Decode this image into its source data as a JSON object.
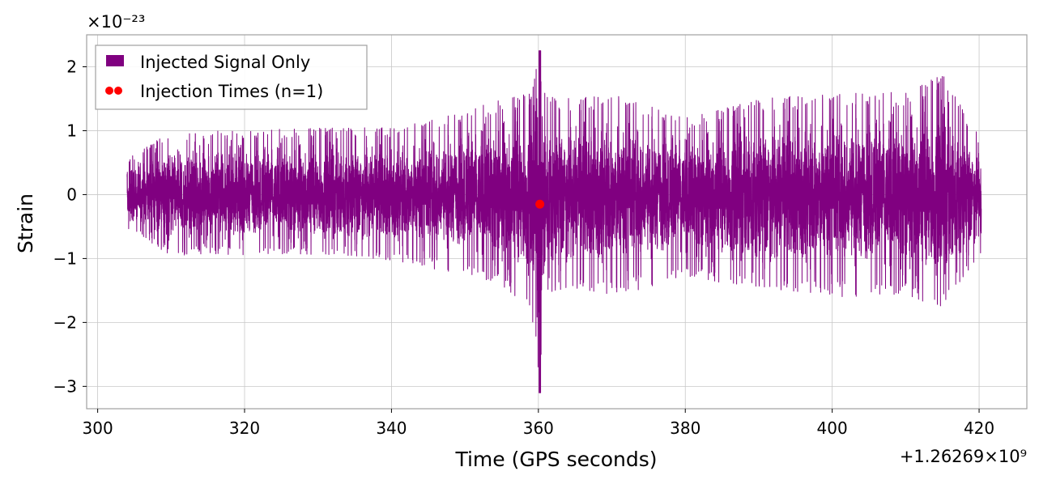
{
  "chart_data": {
    "type": "line",
    "title": "",
    "xlabel": "Time (GPS seconds)",
    "ylabel": "Strain",
    "x_offset_label": "+1.26269×10⁹",
    "y_scale_label": "×10⁻²³",
    "xlim": [
      298.5,
      426.5
    ],
    "ylim": [
      -3.35,
      2.5
    ],
    "x_ticks": [
      300,
      320,
      340,
      360,
      380,
      400,
      420
    ],
    "x_tick_labels": [
      "300",
      "320",
      "340",
      "360",
      "380",
      "400",
      "420"
    ],
    "y_ticks": [
      -3,
      -2,
      -1,
      0,
      1,
      2
    ],
    "y_tick_labels": [
      "−3",
      "−2",
      "−1",
      "0",
      "1",
      "2"
    ],
    "grid": true,
    "legend_position": "top-left",
    "series": [
      {
        "name": "Injected Signal Only",
        "kind": "line",
        "color": "#800080",
        "x_range": [
          304.0,
          420.3
        ],
        "envelope": {
          "x": [
            304,
            310,
            320,
            330,
            340,
            350,
            355,
            359,
            360.2,
            361,
            365,
            370,
            380,
            390,
            400,
            410,
            415,
            420.3
          ],
          "upper": [
            0.55,
            1.0,
            1.0,
            1.05,
            1.05,
            1.3,
            1.5,
            1.6,
            2.25,
            1.55,
            1.5,
            1.6,
            1.2,
            1.5,
            1.6,
            1.6,
            1.9,
            0.85
          ],
          "lower": [
            -0.55,
            -0.95,
            -0.95,
            -0.95,
            -1.05,
            -1.25,
            -1.45,
            -1.8,
            -3.1,
            -1.6,
            -1.5,
            -1.6,
            -1.3,
            -1.5,
            -1.6,
            -1.6,
            -1.8,
            -0.95
          ]
        }
      },
      {
        "name": "Injection Times (n=1)",
        "kind": "scatter",
        "color": "#ff0000",
        "points": [
          {
            "x": 360.2,
            "y": -0.15
          }
        ]
      }
    ]
  }
}
